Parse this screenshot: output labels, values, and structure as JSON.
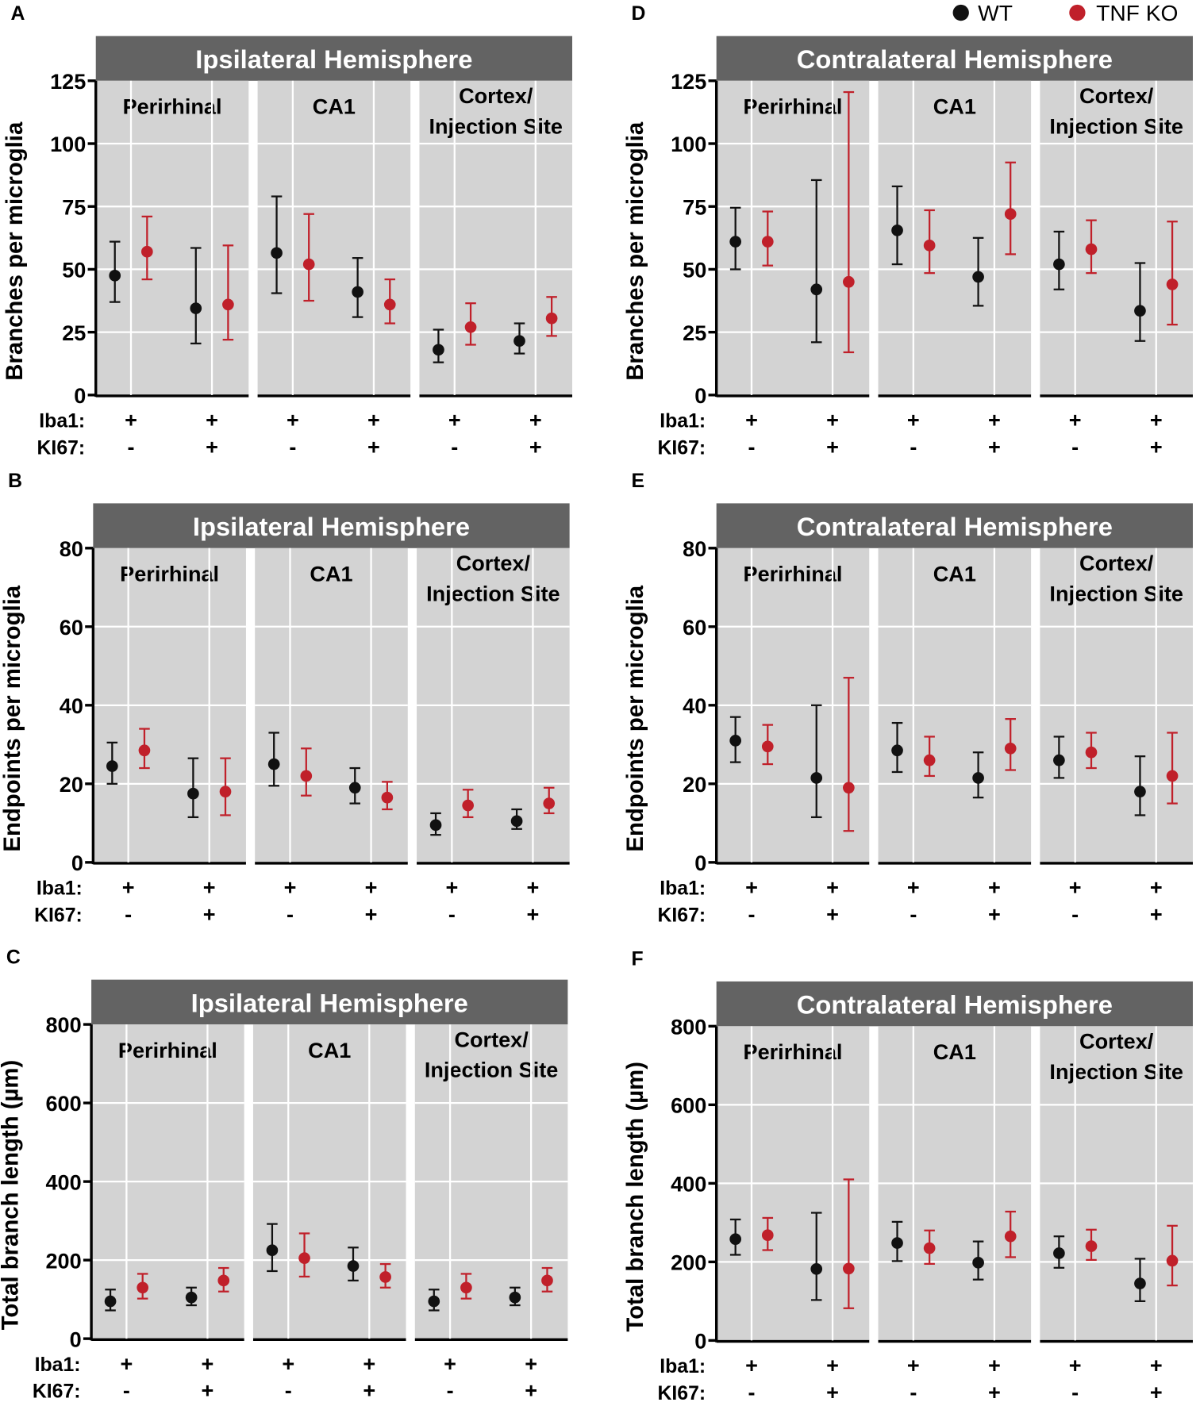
{
  "legend": [
    {
      "label": "WT",
      "color": "#111111"
    },
    {
      "label": "TNF KO",
      "color": "#c0202a"
    }
  ],
  "row_labels": [
    "Iba1:",
    "KI67:"
  ],
  "chart_data": [
    {
      "panel": "A",
      "type": "scatter",
      "title": "Ipsilateral Hemisphere",
      "ylabel": "Branches per microglia",
      "ylim": [
        0,
        125
      ],
      "yticks": [
        0,
        25,
        50,
        75,
        100,
        125
      ],
      "facets": [
        {
          "name": [
            "Perirhinal"
          ],
          "groups": [
            {
              "iba1": "+",
              "ki67": "-",
              "wt": {
                "mean": 47.5,
                "lo": 37,
                "hi": 61
              },
              "ko": {
                "mean": 57,
                "lo": 46,
                "hi": 71
              }
            },
            {
              "iba1": "+",
              "ki67": "+",
              "wt": {
                "mean": 34.5,
                "lo": 20.5,
                "hi": 58.5
              },
              "ko": {
                "mean": 36,
                "lo": 22,
                "hi": 59.5
              }
            }
          ]
        },
        {
          "name": [
            "CA1"
          ],
          "groups": [
            {
              "iba1": "+",
              "ki67": "-",
              "wt": {
                "mean": 56.5,
                "lo": 40.5,
                "hi": 79
              },
              "ko": {
                "mean": 52,
                "lo": 37.5,
                "hi": 72
              }
            },
            {
              "iba1": "+",
              "ki67": "+",
              "wt": {
                "mean": 41,
                "lo": 31,
                "hi": 54.5
              },
              "ko": {
                "mean": 36,
                "lo": 28.5,
                "hi": 46
              }
            }
          ]
        },
        {
          "name": [
            "Cortex/",
            "Injection Site"
          ],
          "groups": [
            {
              "iba1": "+",
              "ki67": "-",
              "wt": {
                "mean": 18,
                "lo": 13,
                "hi": 26
              },
              "ko": {
                "mean": 27,
                "lo": 20,
                "hi": 36.5
              }
            },
            {
              "iba1": "+",
              "ki67": "+",
              "wt": {
                "mean": 21.5,
                "lo": 16.5,
                "hi": 28.5
              },
              "ko": {
                "mean": 30.5,
                "lo": 23.5,
                "hi": 39
              }
            }
          ]
        }
      ]
    },
    {
      "panel": "B",
      "type": "scatter",
      "title": "Ipsilateral Hemisphere",
      "ylabel": "Endpoints per microglia",
      "ylim": [
        0,
        80
      ],
      "yticks": [
        0,
        20,
        40,
        60,
        80
      ],
      "facets": [
        {
          "name": [
            "Perirhinal"
          ],
          "groups": [
            {
              "iba1": "+",
              "ki67": "-",
              "wt": {
                "mean": 24.5,
                "lo": 20,
                "hi": 30.5
              },
              "ko": {
                "mean": 28.5,
                "lo": 24,
                "hi": 34
              }
            },
            {
              "iba1": "+",
              "ki67": "+",
              "wt": {
                "mean": 17.5,
                "lo": 11.5,
                "hi": 26.5
              },
              "ko": {
                "mean": 18,
                "lo": 12,
                "hi": 26.5
              }
            }
          ]
        },
        {
          "name": [
            "CA1"
          ],
          "groups": [
            {
              "iba1": "+",
              "ki67": "-",
              "wt": {
                "mean": 25,
                "lo": 19.5,
                "hi": 33
              },
              "ko": {
                "mean": 22,
                "lo": 17,
                "hi": 29
              }
            },
            {
              "iba1": "+",
              "ki67": "+",
              "wt": {
                "mean": 19,
                "lo": 15,
                "hi": 24
              },
              "ko": {
                "mean": 16.5,
                "lo": 13.5,
                "hi": 20.5
              }
            }
          ]
        },
        {
          "name": [
            "Cortex/",
            "Injection Site"
          ],
          "groups": [
            {
              "iba1": "+",
              "ki67": "-",
              "wt": {
                "mean": 9.5,
                "lo": 7,
                "hi": 12.5
              },
              "ko": {
                "mean": 14.5,
                "lo": 11.5,
                "hi": 18.5
              }
            },
            {
              "iba1": "+",
              "ki67": "+",
              "wt": {
                "mean": 10.5,
                "lo": 8.5,
                "hi": 13.5
              },
              "ko": {
                "mean": 15,
                "lo": 12.5,
                "hi": 19
              }
            }
          ]
        }
      ]
    },
    {
      "panel": "C",
      "type": "scatter",
      "title": "Ipsilateral Hemisphere",
      "ylabel": "Total branch length (µm)",
      "ylim": [
        0,
        800
      ],
      "yticks": [
        0,
        200,
        400,
        600,
        800
      ],
      "facets": [
        {
          "name": [
            "Perirhinal"
          ],
          "groups": [
            {
              "iba1": "+",
              "ki67": "-",
              "wt": {
                "mean": 95,
                "lo": 72,
                "hi": 125
              },
              "ko": {
                "mean": 130,
                "lo": 102,
                "hi": 165
              }
            },
            {
              "iba1": "+",
              "ki67": "+",
              "wt": {
                "mean": 105,
                "lo": 85,
                "hi": 130
              },
              "ko": {
                "mean": 148,
                "lo": 120,
                "hi": 180
              }
            }
          ]
        },
        {
          "name": [
            "CA1"
          ],
          "groups": [
            {
              "iba1": "+",
              "ki67": "-",
              "wt": {
                "mean": 225,
                "lo": 172,
                "hi": 292
              },
              "ko": {
                "mean": 205,
                "lo": 158,
                "hi": 268
              }
            },
            {
              "iba1": "+",
              "ki67": "+",
              "wt": {
                "mean": 185,
                "lo": 148,
                "hi": 232
              },
              "ko": {
                "mean": 157,
                "lo": 130,
                "hi": 190
              }
            }
          ]
        },
        {
          "name": [
            "Cortex/",
            "Injection Site"
          ],
          "groups": [
            {
              "iba1": "+",
              "ki67": "-",
              "wt": {
                "mean": 95,
                "lo": 72,
                "hi": 125
              },
              "ko": {
                "mean": 130,
                "lo": 102,
                "hi": 165
              }
            },
            {
              "iba1": "+",
              "ki67": "+",
              "wt": {
                "mean": 105,
                "lo": 85,
                "hi": 130
              },
              "ko": {
                "mean": 148,
                "lo": 120,
                "hi": 180
              }
            }
          ]
        }
      ]
    },
    {
      "panel": "D",
      "type": "scatter",
      "title": "Contralateral Hemisphere",
      "ylabel": "Branches per microglia",
      "ylim": [
        0,
        125
      ],
      "yticks": [
        0,
        25,
        50,
        75,
        100,
        125
      ],
      "facets": [
        {
          "name": [
            "Perirhinal"
          ],
          "groups": [
            {
              "iba1": "+",
              "ki67": "-",
              "wt": {
                "mean": 61,
                "lo": 50,
                "hi": 74.5
              },
              "ko": {
                "mean": 61,
                "lo": 51.5,
                "hi": 73
              }
            },
            {
              "iba1": "+",
              "ki67": "+",
              "wt": {
                "mean": 42,
                "lo": 21,
                "hi": 85.5
              },
              "ko": {
                "mean": 45,
                "lo": 17,
                "hi": 120.5
              }
            }
          ]
        },
        {
          "name": [
            "CA1"
          ],
          "groups": [
            {
              "iba1": "+",
              "ki67": "-",
              "wt": {
                "mean": 65.5,
                "lo": 52,
                "hi": 83
              },
              "ko": {
                "mean": 59.5,
                "lo": 48.5,
                "hi": 73.5
              }
            },
            {
              "iba1": "+",
              "ki67": "+",
              "wt": {
                "mean": 47,
                "lo": 35.5,
                "hi": 62.5
              },
              "ko": {
                "mean": 72,
                "lo": 56,
                "hi": 92.5
              }
            }
          ]
        },
        {
          "name": [
            "Cortex/",
            "Injection Site"
          ],
          "groups": [
            {
              "iba1": "+",
              "ki67": "-",
              "wt": {
                "mean": 52,
                "lo": 42,
                "hi": 65
              },
              "ko": {
                "mean": 58,
                "lo": 48.5,
                "hi": 69.5
              }
            },
            {
              "iba1": "+",
              "ki67": "+",
              "wt": {
                "mean": 33.5,
                "lo": 21.5,
                "hi": 52.5
              },
              "ko": {
                "mean": 44,
                "lo": 28,
                "hi": 69
              }
            }
          ]
        }
      ]
    },
    {
      "panel": "E",
      "type": "scatter",
      "title": "Contralateral Hemisphere",
      "ylabel": "Endpoints per microglia",
      "ylim": [
        0,
        80
      ],
      "yticks": [
        0,
        20,
        40,
        60,
        80
      ],
      "facets": [
        {
          "name": [
            "Perirhinal"
          ],
          "groups": [
            {
              "iba1": "+",
              "ki67": "-",
              "wt": {
                "mean": 31,
                "lo": 25.5,
                "hi": 37
              },
              "ko": {
                "mean": 29.5,
                "lo": 25,
                "hi": 35
              }
            },
            {
              "iba1": "+",
              "ki67": "+",
              "wt": {
                "mean": 21.5,
                "lo": 11.5,
                "hi": 40
              },
              "ko": {
                "mean": 19,
                "lo": 8,
                "hi": 47
              }
            }
          ]
        },
        {
          "name": [
            "CA1"
          ],
          "groups": [
            {
              "iba1": "+",
              "ki67": "-",
              "wt": {
                "mean": 28.5,
                "lo": 23,
                "hi": 35.5
              },
              "ko": {
                "mean": 26,
                "lo": 22,
                "hi": 32
              }
            },
            {
              "iba1": "+",
              "ki67": "+",
              "wt": {
                "mean": 21.5,
                "lo": 16.5,
                "hi": 28
              },
              "ko": {
                "mean": 29,
                "lo": 23.5,
                "hi": 36.5
              }
            }
          ]
        },
        {
          "name": [
            "Cortex/",
            "Injection Site"
          ],
          "groups": [
            {
              "iba1": "+",
              "ki67": "-",
              "wt": {
                "mean": 26,
                "lo": 21.5,
                "hi": 32
              },
              "ko": {
                "mean": 28,
                "lo": 24,
                "hi": 33
              }
            },
            {
              "iba1": "+",
              "ki67": "+",
              "wt": {
                "mean": 18,
                "lo": 12,
                "hi": 27
              },
              "ko": {
                "mean": 22,
                "lo": 15,
                "hi": 33
              }
            }
          ]
        }
      ]
    },
    {
      "panel": "F",
      "type": "scatter",
      "title": "Contralateral Hemisphere",
      "ylabel": "Total branch length (µm)",
      "ylim": [
        0,
        800
      ],
      "yticks": [
        0,
        200,
        400,
        600,
        800
      ],
      "facets": [
        {
          "name": [
            "Perirhinal"
          ],
          "groups": [
            {
              "iba1": "+",
              "ki67": "-",
              "wt": {
                "mean": 258,
                "lo": 218,
                "hi": 308
              },
              "ko": {
                "mean": 268,
                "lo": 230,
                "hi": 312
              }
            },
            {
              "iba1": "+",
              "ki67": "+",
              "wt": {
                "mean": 182,
                "lo": 103,
                "hi": 325
              },
              "ko": {
                "mean": 183,
                "lo": 82,
                "hi": 410
              }
            }
          ]
        },
        {
          "name": [
            "CA1"
          ],
          "groups": [
            {
              "iba1": "+",
              "ki67": "-",
              "wt": {
                "mean": 248,
                "lo": 202,
                "hi": 302
              },
              "ko": {
                "mean": 235,
                "lo": 195,
                "hi": 280
              }
            },
            {
              "iba1": "+",
              "ki67": "+",
              "wt": {
                "mean": 198,
                "lo": 155,
                "hi": 252
              },
              "ko": {
                "mean": 265,
                "lo": 212,
                "hi": 328
              }
            }
          ]
        },
        {
          "name": [
            "Cortex/",
            "Injection Site"
          ],
          "groups": [
            {
              "iba1": "+",
              "ki67": "-",
              "wt": {
                "mean": 222,
                "lo": 185,
                "hi": 265
              },
              "ko": {
                "mean": 240,
                "lo": 205,
                "hi": 282
              }
            },
            {
              "iba1": "+",
              "ki67": "+",
              "wt": {
                "mean": 145,
                "lo": 100,
                "hi": 208
              },
              "ko": {
                "mean": 203,
                "lo": 140,
                "hi": 292
              }
            }
          ]
        }
      ]
    }
  ]
}
